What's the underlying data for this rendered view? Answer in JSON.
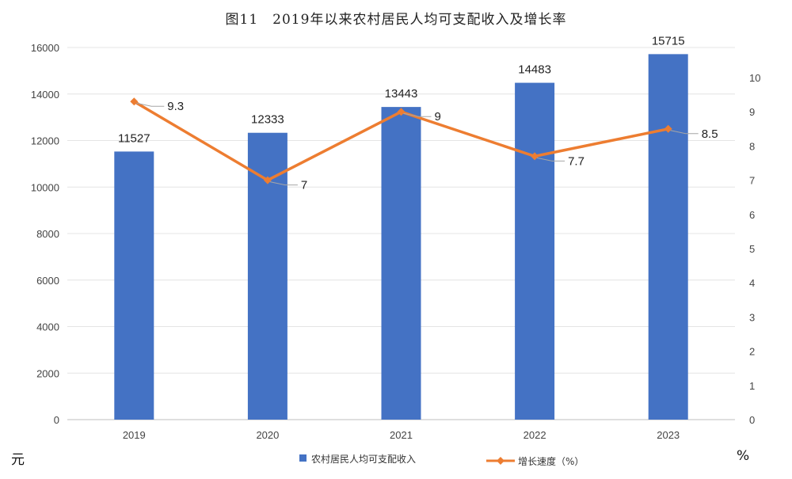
{
  "chart_data": {
    "type": "bar",
    "title": "图11　2019年以来农村居民人均可支配收入及增长率",
    "categories": [
      "2019",
      "2020",
      "2021",
      "2022",
      "2023"
    ],
    "series": [
      {
        "name": "农村居民人均可支配收入",
        "kind": "bar",
        "axis": "left",
        "color": "#4472C4",
        "values": [
          11527,
          12333,
          13443,
          14483,
          15715
        ]
      },
      {
        "name": "增长速度（%）",
        "kind": "line",
        "axis": "right",
        "color": "#ED7D31",
        "marker": "diamond",
        "values": [
          9.3,
          7,
          9,
          7.7,
          8.5
        ]
      }
    ],
    "y_left": {
      "unit": "元",
      "min": 0,
      "max": 16000,
      "step": 2000,
      "ticks": [
        "0",
        "2000",
        "4000",
        "6000",
        "8000",
        "10000",
        "12000",
        "14000",
        "16000"
      ]
    },
    "y_right": {
      "unit": "%",
      "min": 0,
      "max": 10,
      "step": 1,
      "ticks": [
        "0",
        "1",
        "2",
        "3",
        "4",
        "5",
        "6",
        "7",
        "8",
        "9",
        "10"
      ]
    },
    "grid": true,
    "legend": "bottom"
  }
}
